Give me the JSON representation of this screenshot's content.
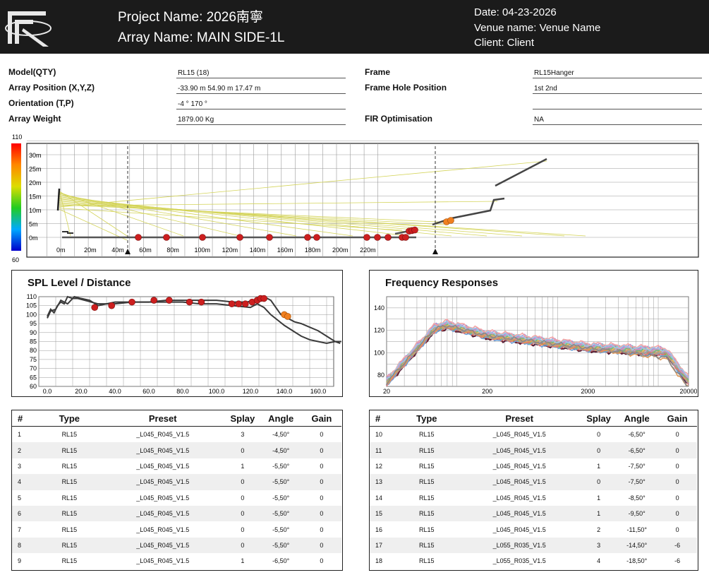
{
  "header": {
    "project_name": "Project Name: 2026南寧",
    "array_name": "Array Name: MAIN SIDE-1L",
    "date": "Date: 04-23-2026",
    "venue": "Venue name: Venue Name",
    "client": "Client: Client"
  },
  "info": {
    "model_label": "Model(QTY)",
    "model_value": "RL15 (18)",
    "position_label": "Array Position (X,Y,Z)",
    "position_value": "-33.90 m 54.90 m 17.47 m",
    "orientation_label": "Orientation (T,P)",
    "orientation_value": "-4 °  170 °",
    "weight_label": "Array Weight",
    "weight_value": "1879.00 Kg",
    "frame_label": "Frame",
    "frame_value": "RL15Hanger",
    "frame_hole_label": "Frame Hole Position",
    "frame_hole_value": "1st 2nd",
    "fir_label": "FIR Optimisation",
    "fir_value": "NA"
  },
  "colorbar": {
    "max": "110",
    "min": "60"
  },
  "section_view": {
    "y_ticks": [
      "30m",
      "25m",
      "20m",
      "15m",
      "10m",
      "5m",
      "0m"
    ],
    "x_ticks": [
      "0m",
      "20m",
      "40m",
      "60m",
      "80m",
      "100m",
      "120m",
      "140m",
      "160m",
      "180m",
      "200m",
      "220m"
    ]
  },
  "spl_chart": {
    "title": "SPL Level / Distance",
    "type": "line",
    "y_ticks": [
      "110",
      "105",
      "100",
      "95",
      "90",
      "85",
      "80",
      "75",
      "70",
      "65",
      "60"
    ],
    "x_ticks": [
      "0.0",
      "20.0",
      "40.0",
      "60.0",
      "80.0",
      "100.0",
      "120.0",
      "140.0",
      "160.0"
    ],
    "ylim": [
      60,
      110
    ],
    "xlim": [
      -5,
      175
    ],
    "series": [
      {
        "name": "upper",
        "x": [
          0,
          2,
          4,
          6,
          8,
          10,
          12,
          15,
          18,
          22,
          26,
          30,
          35,
          40,
          50,
          60,
          70,
          80,
          90,
          100,
          110,
          118,
          122,
          126,
          128,
          130,
          132,
          135,
          138,
          142,
          146,
          150,
          155,
          160,
          165,
          170,
          173
        ],
        "y": [
          99,
          103,
          101,
          105,
          107,
          106,
          110,
          109,
          109,
          108,
          107,
          106,
          106,
          106,
          107,
          107,
          108,
          108,
          108,
          108,
          107,
          107,
          108,
          109,
          109,
          109,
          108,
          104,
          100,
          98,
          96,
          95,
          93,
          91,
          88,
          85,
          84
        ]
      },
      {
        "name": "lower",
        "x": [
          0,
          2,
          5,
          8,
          12,
          16,
          20,
          25,
          30,
          35,
          40,
          50,
          60,
          70,
          80,
          90,
          100,
          110,
          120,
          124,
          128,
          132,
          136,
          140,
          145,
          150,
          155,
          160,
          165,
          170,
          175
        ],
        "y": [
          98,
          102,
          103,
          108,
          106,
          110,
          109,
          108,
          105,
          106,
          107,
          107,
          107,
          107,
          107,
          106,
          106,
          105,
          104,
          106,
          104,
          100,
          97,
          94,
          91,
          88,
          86,
          85,
          84,
          85,
          85
        ]
      }
    ],
    "points_red": [
      [
        28,
        104
      ],
      [
        38,
        105
      ],
      [
        50,
        107
      ],
      [
        63,
        108
      ],
      [
        72,
        108
      ],
      [
        84,
        107
      ],
      [
        91,
        107
      ],
      [
        109,
        106
      ],
      [
        113,
        106
      ],
      [
        117,
        106
      ],
      [
        121,
        107
      ],
      [
        124,
        108
      ],
      [
        126,
        109
      ],
      [
        128,
        109
      ]
    ],
    "points_orange": [
      [
        140,
        100
      ],
      [
        142,
        99
      ]
    ]
  },
  "freq_chart": {
    "title": "Frequency Responses",
    "type": "line",
    "y_ticks": [
      "140",
      "120",
      "100",
      "80"
    ],
    "x_ticks": [
      "20",
      "200",
      "2000",
      "20000"
    ],
    "ylim": [
      70,
      150
    ],
    "xlim": [
      20,
      20000
    ],
    "colors": [
      "#5a2036",
      "#d9604e",
      "#8bc34a",
      "#9e9e9e",
      "#c6b0d8",
      "#f0c060",
      "#7ecfcf",
      "#b58ad0",
      "#f3a6a6",
      "#6aa0d8",
      "#e57373",
      "#a0a0a0",
      "#caa66b",
      "#7cb37c",
      "#d48fc0",
      "#9cc6e8",
      "#e09a5a",
      "#888888"
    ]
  },
  "table_headers": {
    "num": "#",
    "type": "Type",
    "preset": "Preset",
    "splay": "Splay",
    "angle": "Angle",
    "gain": "Gain"
  },
  "table_left": [
    {
      "num": "1",
      "type": "RL15",
      "preset": "_L045_R045_V1.5",
      "splay": "3",
      "angle": "-4,50°",
      "gain": "0"
    },
    {
      "num": "2",
      "type": "RL15",
      "preset": "_L045_R045_V1.5",
      "splay": "0",
      "angle": "-4,50°",
      "gain": "0"
    },
    {
      "num": "3",
      "type": "RL15",
      "preset": "_L045_R045_V1.5",
      "splay": "1",
      "angle": "-5,50°",
      "gain": "0"
    },
    {
      "num": "4",
      "type": "RL15",
      "preset": "_L045_R045_V1.5",
      "splay": "0",
      "angle": "-5,50°",
      "gain": "0"
    },
    {
      "num": "5",
      "type": "RL15",
      "preset": "_L045_R045_V1.5",
      "splay": "0",
      "angle": "-5,50°",
      "gain": "0"
    },
    {
      "num": "6",
      "type": "RL15",
      "preset": "_L045_R045_V1.5",
      "splay": "0",
      "angle": "-5,50°",
      "gain": "0"
    },
    {
      "num": "7",
      "type": "RL15",
      "preset": "_L045_R045_V1.5",
      "splay": "0",
      "angle": "-5,50°",
      "gain": "0"
    },
    {
      "num": "8",
      "type": "RL15",
      "preset": "_L045_R045_V1.5",
      "splay": "0",
      "angle": "-5,50°",
      "gain": "0"
    },
    {
      "num": "9",
      "type": "RL15",
      "preset": "_L045_R045_V1.5",
      "splay": "1",
      "angle": "-6,50°",
      "gain": "0"
    }
  ],
  "table_right": [
    {
      "num": "10",
      "type": "RL15",
      "preset": "_L045_R045_V1.5",
      "splay": "0",
      "angle": "-6,50°",
      "gain": "0"
    },
    {
      "num": "11",
      "type": "RL15",
      "preset": "_L045_R045_V1.5",
      "splay": "0",
      "angle": "-6,50°",
      "gain": "0"
    },
    {
      "num": "12",
      "type": "RL15",
      "preset": "_L045_R045_V1.5",
      "splay": "1",
      "angle": "-7,50°",
      "gain": "0"
    },
    {
      "num": "13",
      "type": "RL15",
      "preset": "_L045_R045_V1.5",
      "splay": "0",
      "angle": "-7,50°",
      "gain": "0"
    },
    {
      "num": "14",
      "type": "RL15",
      "preset": "_L045_R045_V1.5",
      "splay": "1",
      "angle": "-8,50°",
      "gain": "0"
    },
    {
      "num": "15",
      "type": "RL15",
      "preset": "_L045_R045_V1.5",
      "splay": "1",
      "angle": "-9,50°",
      "gain": "0"
    },
    {
      "num": "16",
      "type": "RL15",
      "preset": "_L045_R045_V1.5",
      "splay": "2",
      "angle": "-11,50°",
      "gain": "0"
    },
    {
      "num": "17",
      "type": "RL15",
      "preset": "_L055_R035_V1.5",
      "splay": "3",
      "angle": "-14,50°",
      "gain": "-6"
    },
    {
      "num": "18",
      "type": "RL15",
      "preset": "_L055_R035_V1.5",
      "splay": "4",
      "angle": "-18,50°",
      "gain": "-6"
    }
  ]
}
